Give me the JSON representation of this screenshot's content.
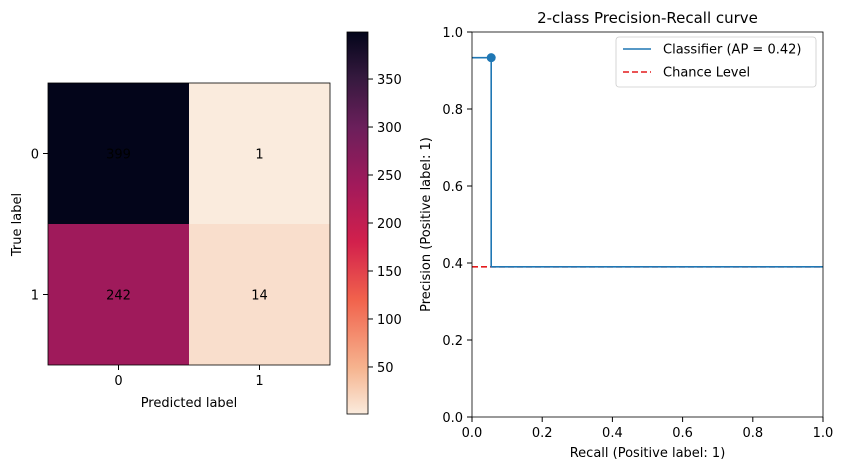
{
  "chart_data": [
    {
      "type": "heatmap",
      "xlabel": "Predicted label",
      "ylabel": "True label",
      "x_categories": [
        "0",
        "1"
      ],
      "y_categories": [
        "0",
        "1"
      ],
      "values": [
        [
          399,
          1
        ],
        [
          242,
          14
        ]
      ],
      "colorbar": {
        "vmin": 1,
        "vmax": 399,
        "ticks": [
          50,
          100,
          150,
          200,
          250,
          300,
          350
        ]
      },
      "colormap": [
        "#03051a",
        "#4c1d4b",
        "#a11a5b",
        "#e83f3f",
        "#f69c73",
        "#faebdd"
      ]
    },
    {
      "type": "line",
      "title": "2-class Precision-Recall curve",
      "xlabel": "Recall (Positive label: 1)",
      "ylabel": "Precision (Positive label: 1)",
      "xlim": [
        0.0,
        1.0
      ],
      "ylim": [
        0.0,
        1.0
      ],
      "xticks": [
        "0.0",
        "0.2",
        "0.4",
        "0.6",
        "0.8",
        "1.0"
      ],
      "yticks": [
        "0.0",
        "0.2",
        "0.4",
        "0.6",
        "0.8",
        "1.0"
      ],
      "legend_position": "top-right",
      "series": [
        {
          "name": "Classifier (AP = 0.42)",
          "color": "#1f77b4",
          "style": "steps",
          "x": [
            1.0,
            0.0547,
            0.0547,
            0.0
          ],
          "y": [
            0.3902,
            0.3902,
            0.9333,
            0.9333
          ]
        },
        {
          "name": "Chance Level",
          "color": "#e41a1c",
          "style": "dashed",
          "x": [
            0.0,
            1.0
          ],
          "y": [
            0.3902,
            0.3902
          ]
        }
      ],
      "point": {
        "x": 0.0547,
        "y": 0.9333,
        "color": "#1f77b4"
      }
    }
  ]
}
